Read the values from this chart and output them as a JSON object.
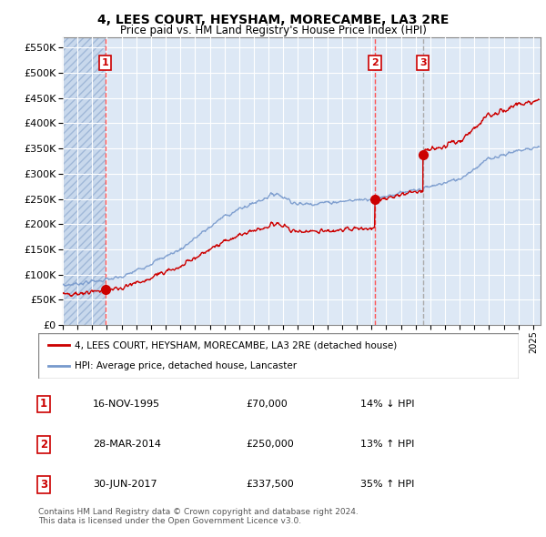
{
  "title": "4, LEES COURT, HEYSHAM, MORECAMBE, LA3 2RE",
  "subtitle": "Price paid vs. HM Land Registry's House Price Index (HPI)",
  "xlim": [
    1993.0,
    2025.5
  ],
  "ylim": [
    0,
    570000
  ],
  "yticks": [
    0,
    50000,
    100000,
    150000,
    200000,
    250000,
    300000,
    350000,
    400000,
    450000,
    500000,
    550000
  ],
  "ytick_labels": [
    "£0",
    "£50K",
    "£100K",
    "£150K",
    "£200K",
    "£250K",
    "£300K",
    "£350K",
    "£400K",
    "£450K",
    "£500K",
    "£550K"
  ],
  "sale_dates": [
    1995.88,
    2014.24,
    2017.5
  ],
  "sale_prices": [
    70000,
    250000,
    337500
  ],
  "sale_labels": [
    "1",
    "2",
    "3"
  ],
  "hpi_color": "#7799cc",
  "sale_color": "#cc0000",
  "vline_color_red": "#ff5555",
  "vline_color_gray": "#aaaaaa",
  "legend_entries": [
    "4, LEES COURT, HEYSHAM, MORECAMBE, LA3 2RE (detached house)",
    "HPI: Average price, detached house, Lancaster"
  ],
  "table_rows": [
    [
      "1",
      "16-NOV-1995",
      "£70,000",
      "14% ↓ HPI"
    ],
    [
      "2",
      "28-MAR-2014",
      "£250,000",
      "13% ↑ HPI"
    ],
    [
      "3",
      "30-JUN-2017",
      "£337,500",
      "35% ↑ HPI"
    ]
  ],
  "footer": "Contains HM Land Registry data © Crown copyright and database right 2024.\nThis data is licensed under the Open Government Licence v3.0."
}
